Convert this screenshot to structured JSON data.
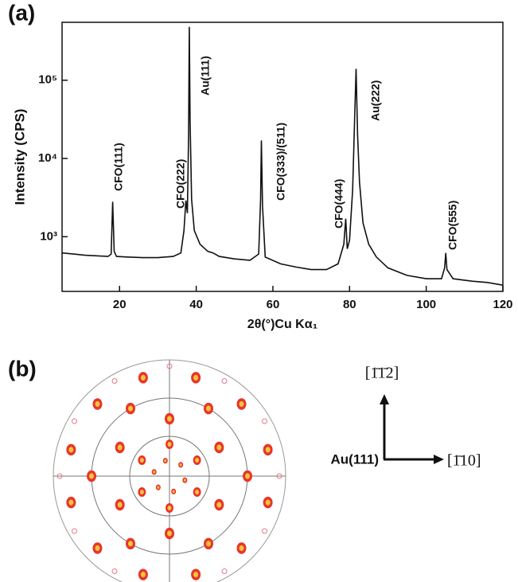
{
  "panels": [
    "(a)",
    "(b)"
  ],
  "chart_data": {
    "type": "line",
    "x_label": "2θ(°)Cu Kα₁",
    "y_label": "Intensity (CPS)",
    "log_y": true,
    "xlim": [
      5,
      120
    ],
    "xticks": [
      20,
      40,
      60,
      80,
      100,
      120
    ],
    "ylim": [
      200,
      550000
    ],
    "yticks": [
      {
        "value": 1000,
        "label": "10³"
      },
      {
        "value": 10000,
        "label": "10⁴"
      },
      {
        "value": 100000,
        "label": "10⁵"
      }
    ],
    "series": [
      {
        "color": "#111111",
        "x": [
          5,
          8,
          11,
          14,
          17,
          17.8,
          18.2,
          18.6,
          19.2,
          22,
          26,
          30,
          34,
          36,
          36.8,
          37.3,
          37.7,
          38.0,
          38.2,
          38.4,
          38.8,
          39.5,
          41,
          43,
          44.4,
          46,
          50,
          54,
          56.3,
          56.8,
          57.0,
          57.3,
          58,
          62,
          66,
          70,
          74,
          77,
          78.5,
          79.0,
          79.4,
          80,
          80.8,
          81.3,
          81.7,
          82.1,
          82.6,
          83.5,
          85,
          87,
          90,
          95,
          100,
          104,
          104.8,
          105.1,
          105.4,
          107,
          112,
          116,
          120
        ],
        "values": [
          620,
          600,
          580,
          570,
          560,
          600,
          2800,
          650,
          560,
          550,
          540,
          540,
          560,
          620,
          1200,
          2900,
          2000,
          20000,
          480000,
          30000,
          3000,
          1200,
          800,
          650,
          620,
          560,
          520,
          500,
          600,
          3000,
          17000,
          2500,
          550,
          450,
          410,
          380,
          380,
          450,
          800,
          1700,
          700,
          900,
          4000,
          30000,
          140000,
          20000,
          5000,
          1500,
          800,
          550,
          400,
          320,
          290,
          290,
          400,
          620,
          380,
          290,
          270,
          260,
          240
        ]
      }
    ],
    "annotations": [
      {
        "text": "CFO(111)",
        "color": "#111111"
      },
      {
        "text": "CFO(222)",
        "color": "#111111"
      },
      {
        "text": "Au(111)",
        "color": "#d62030"
      },
      {
        "text": "CFO(333)/(511)",
        "color": "#111111"
      },
      {
        "text": "CFO(444)",
        "color": "#111111"
      },
      {
        "text": "Au(222)",
        "color": "#d62030"
      },
      {
        "text": "CFO(555)",
        "color": "#111111"
      }
    ]
  },
  "panel_b": {
    "origin_label": "Au(111)",
    "up_label": "[1̄1̄2]",
    "right_label": "[1̄10]"
  }
}
